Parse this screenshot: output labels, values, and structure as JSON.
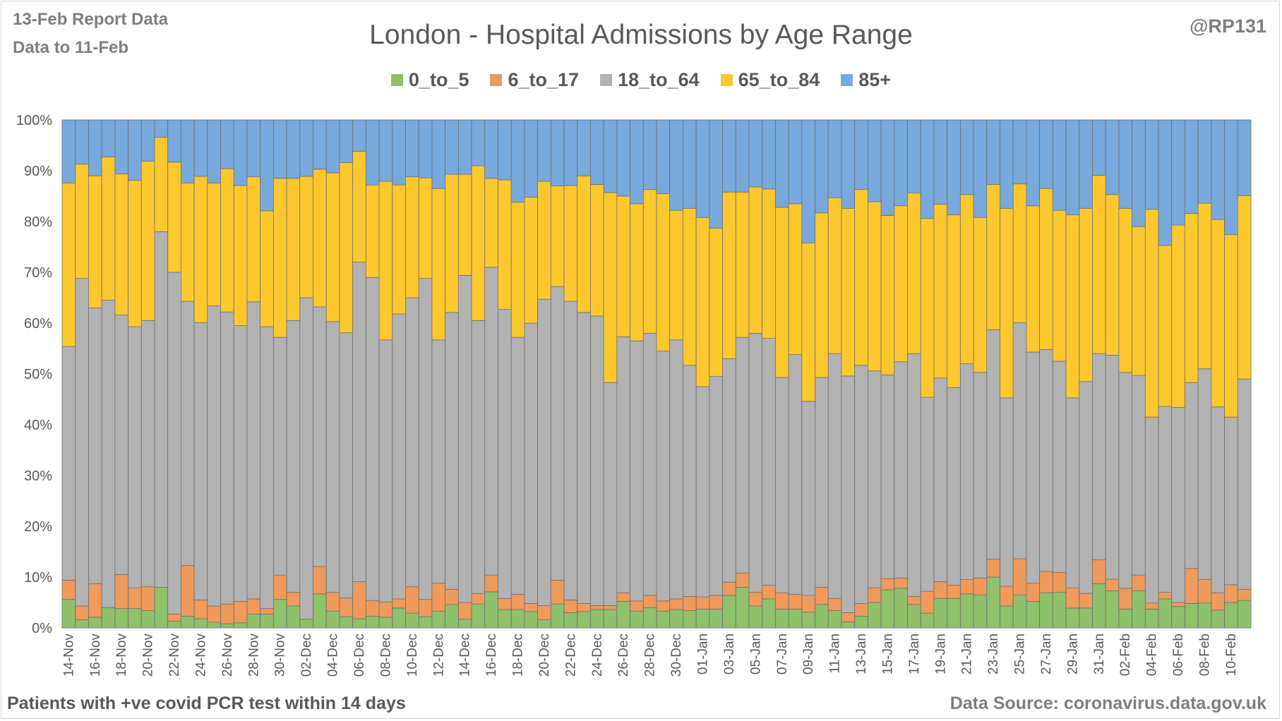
{
  "header": {
    "report_line1": "13-Feb Report Data",
    "report_line2": "Data to 11-Feb",
    "handle": "@RP131"
  },
  "footer": {
    "left": "Patients with  +ve covid PCR test within 14 days",
    "right": "Data Source: coronavirus.data.gov.uk"
  },
  "colors": {
    "0_to_5": "#8fc16a",
    "6_to_17": "#ef9a5a",
    "18_to_64": "#b2b2b2",
    "65_to_84": "#fcc82e",
    "85+": "#78a9dc",
    "gridline": "#d9d9d9",
    "bar_edge": "#6f6f6f"
  },
  "chart_data": {
    "type": "bar",
    "stacked": true,
    "normalized": true,
    "title": "London - Hospital Admissions by Age Range",
    "xlabel": "",
    "ylabel": "",
    "ylim": [
      0,
      100
    ],
    "yticks": [
      "0%",
      "10%",
      "20%",
      "30%",
      "40%",
      "50%",
      "60%",
      "70%",
      "80%",
      "90%",
      "100%"
    ],
    "grid": true,
    "legend_position": "top",
    "categories": [
      "14-Nov",
      "15-Nov",
      "16-Nov",
      "17-Nov",
      "18-Nov",
      "19-Nov",
      "20-Nov",
      "21-Nov",
      "22-Nov",
      "23-Nov",
      "24-Nov",
      "25-Nov",
      "26-Nov",
      "27-Nov",
      "28-Nov",
      "29-Nov",
      "30-Nov",
      "01-Dec",
      "02-Dec",
      "03-Dec",
      "04-Dec",
      "05-Dec",
      "06-Dec",
      "07-Dec",
      "08-Dec",
      "09-Dec",
      "10-Dec",
      "11-Dec",
      "12-Dec",
      "13-Dec",
      "14-Dec",
      "15-Dec",
      "16-Dec",
      "17-Dec",
      "18-Dec",
      "19-Dec",
      "20-Dec",
      "21-Dec",
      "22-Dec",
      "23-Dec",
      "24-Dec",
      "25-Dec",
      "26-Dec",
      "27-Dec",
      "28-Dec",
      "29-Dec",
      "30-Dec",
      "31-Dec",
      "01-Jan",
      "02-Jan",
      "03-Jan",
      "04-Jan",
      "05-Jan",
      "06-Jan",
      "07-Jan",
      "08-Jan",
      "09-Jan",
      "10-Jan",
      "11-Jan",
      "12-Jan",
      "13-Jan",
      "14-Jan",
      "15-Jan",
      "16-Jan",
      "17-Jan",
      "18-Jan",
      "19-Jan",
      "20-Jan",
      "21-Jan",
      "22-Jan",
      "23-Jan",
      "24-Jan",
      "25-Jan",
      "26-Jan",
      "27-Jan",
      "28-Jan",
      "29-Jan",
      "30-Jan",
      "31-Jan",
      "01-Feb",
      "02-Feb",
      "03-Feb",
      "04-Feb",
      "05-Feb",
      "06-Feb",
      "07-Feb",
      "08-Feb",
      "09-Feb",
      "10-Feb",
      "11-Feb"
    ],
    "xtick_labels": [
      "14-Nov",
      "16-Nov",
      "18-Nov",
      "20-Nov",
      "22-Nov",
      "24-Nov",
      "26-Nov",
      "28-Nov",
      "30-Nov",
      "02-Dec",
      "04-Dec",
      "06-Dec",
      "08-Dec",
      "10-Dec",
      "12-Dec",
      "14-Dec",
      "16-Dec",
      "18-Dec",
      "20-Dec",
      "22-Dec",
      "24-Dec",
      "26-Dec",
      "28-Dec",
      "30-Dec",
      "01-Jan",
      "03-Jan",
      "05-Jan",
      "07-Jan",
      "09-Jan",
      "11-Jan",
      "13-Jan",
      "15-Jan",
      "17-Jan",
      "19-Jan",
      "21-Jan",
      "23-Jan",
      "25-Jan",
      "27-Jan",
      "29-Jan",
      "31-Jan",
      "02-Feb",
      "04-Feb",
      "06-Feb",
      "08-Feb",
      "10-Feb"
    ],
    "cumulative_boundaries_note": "values below are cumulative stack tops in percent",
    "series": [
      {
        "name": "0_to_5",
        "values": [
          5.6,
          1.6,
          2.1,
          4.0,
          3.8,
          3.8,
          3.4,
          8.0,
          1.3,
          2.3,
          1.8,
          1.1,
          0.8,
          1.0,
          2.7,
          2.7,
          5.6,
          4.3,
          1.7,
          6.7,
          3.3,
          2.2,
          1.8,
          2.3,
          2.1,
          3.9,
          2.9,
          2.2,
          3.3,
          4.6,
          1.7,
          4.7,
          7.1,
          3.6,
          3.6,
          3.2,
          1.6,
          4.7,
          3.0,
          3.2,
          3.6,
          3.6,
          5.2,
          3.3,
          4.0,
          3.3,
          3.6,
          3.4,
          3.7,
          3.7,
          6.4,
          8.0,
          4.3,
          5.7,
          3.7,
          3.7,
          3.1,
          4.6,
          3.4,
          1.2,
          2.3,
          5.0,
          7.5,
          7.8,
          4.6,
          2.9,
          5.8,
          5.8,
          6.7,
          6.5,
          10.0,
          4.3,
          6.5,
          5.2,
          6.9,
          7.0,
          3.9,
          3.9,
          8.7,
          7.3,
          3.7,
          7.3,
          3.7,
          5.7,
          4.2,
          4.8,
          4.9,
          3.5,
          5.0,
          5.4
        ]
      },
      {
        "name": "6_to_17",
        "values": [
          9.4,
          4.3,
          8.7,
          4.0,
          10.5,
          7.9,
          8.1,
          8.0,
          2.7,
          12.3,
          5.5,
          4.3,
          4.7,
          5.2,
          5.7,
          3.8,
          10.4,
          7.0,
          1.7,
          12.1,
          7.0,
          5.9,
          9.1,
          5.4,
          5.1,
          5.7,
          8.1,
          5.6,
          8.8,
          7.6,
          5.0,
          6.8,
          10.4,
          5.8,
          6.6,
          4.8,
          4.4,
          9.4,
          5.5,
          4.8,
          4.4,
          4.4,
          6.9,
          5.3,
          6.4,
          5.3,
          5.7,
          6.2,
          6.1,
          6.4,
          9.0,
          10.8,
          7.0,
          8.4,
          6.9,
          6.6,
          6.4,
          8.0,
          5.8,
          3.0,
          4.8,
          7.9,
          9.7,
          9.8,
          6.2,
          7.2,
          9.1,
          8.4,
          9.5,
          9.8,
          13.5,
          8.2,
          13.6,
          8.8,
          11.1,
          10.9,
          7.9,
          6.8,
          13.4,
          9.6,
          7.8,
          10.4,
          4.9,
          7.0,
          5.0,
          11.7,
          9.5,
          6.9,
          8.5,
          7.6
        ]
      },
      {
        "name": "18_to_64",
        "values": [
          55.4,
          68.8,
          63.0,
          64.5,
          61.6,
          59.3,
          60.5,
          78.0,
          70.0,
          64.3,
          60.1,
          63.4,
          62.2,
          59.5,
          64.2,
          59.3,
          57.2,
          60.5,
          65.0,
          63.2,
          60.3,
          58.1,
          72.0,
          69.0,
          56.7,
          61.8,
          65.0,
          68.8,
          56.7,
          62.1,
          69.4,
          60.5,
          71.0,
          62.7,
          57.2,
          60.0,
          64.7,
          67.2,
          64.3,
          62.1,
          61.4,
          48.3,
          57.3,
          56.5,
          58.0,
          54.5,
          56.7,
          51.7,
          47.5,
          49.5,
          53.0,
          57.2,
          58.0,
          57.0,
          49.3,
          53.8,
          44.6,
          49.3,
          54.0,
          49.6,
          51.7,
          50.6,
          49.8,
          52.4,
          54.0,
          45.4,
          49.2,
          47.3,
          52.0,
          50.3,
          58.7,
          45.3,
          60.1,
          54.3,
          54.8,
          52.5,
          45.3,
          48.5,
          54.0,
          53.7,
          50.3,
          49.7,
          41.5,
          43.6,
          43.4,
          48.3,
          51.0,
          43.5,
          41.5,
          49.0
        ]
      },
      {
        "name": "65_to_84",
        "values": [
          87.6,
          91.3,
          89.0,
          92.7,
          89.4,
          88.1,
          91.9,
          96.6,
          91.7,
          87.6,
          88.9,
          87.6,
          90.4,
          87.1,
          88.8,
          82.1,
          88.5,
          88.5,
          88.9,
          90.3,
          89.6,
          91.6,
          93.8,
          87.2,
          87.9,
          87.2,
          88.8,
          88.6,
          86.5,
          89.3,
          89.3,
          91.0,
          88.5,
          88.2,
          83.8,
          84.8,
          87.9,
          87.0,
          87.1,
          89.0,
          87.3,
          85.7,
          85.0,
          83.5,
          86.3,
          85.5,
          82.2,
          82.6,
          80.8,
          78.7,
          85.8,
          85.8,
          86.8,
          86.4,
          82.8,
          83.5,
          75.8,
          81.7,
          84.7,
          82.6,
          86.3,
          83.9,
          81.2,
          83.1,
          85.6,
          80.6,
          83.4,
          81.3,
          85.3,
          80.8,
          87.3,
          82.6,
          87.4,
          83.1,
          86.5,
          82.2,
          81.3,
          82.6,
          89.1,
          85.3,
          82.6,
          79.0,
          82.4,
          75.3,
          79.3,
          81.6,
          83.6,
          80.4,
          77.4,
          85.1
        ]
      },
      {
        "name": "85+",
        "values": [
          100,
          100,
          100,
          100,
          100,
          100,
          100,
          100,
          100,
          100,
          100,
          100,
          100,
          100,
          100,
          100,
          100,
          100,
          100,
          100,
          100,
          100,
          100,
          100,
          100,
          100,
          100,
          100,
          100,
          100,
          100,
          100,
          100,
          100,
          100,
          100,
          100,
          100,
          100,
          100,
          100,
          100,
          100,
          100,
          100,
          100,
          100,
          100,
          100,
          100,
          100,
          100,
          100,
          100,
          100,
          100,
          100,
          100,
          100,
          100,
          100,
          100,
          100,
          100,
          100,
          100,
          100,
          100,
          100,
          100,
          100,
          100,
          100,
          100,
          100,
          100,
          100,
          100,
          100,
          100,
          100,
          100,
          100,
          100,
          100,
          100,
          100,
          100,
          100,
          100
        ]
      }
    ]
  }
}
